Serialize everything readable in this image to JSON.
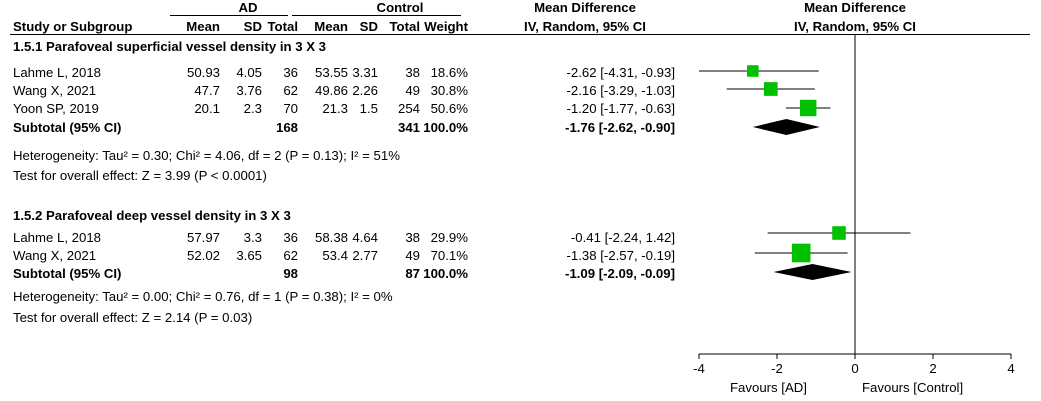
{
  "header": {
    "group1": "AD",
    "group2": "Control",
    "study_col": "Study or Subgroup",
    "mean1": "Mean",
    "sd1": "SD",
    "total1": "Total",
    "mean2": "Mean",
    "sd2": "SD",
    "total2": "Total",
    "weight": "Weight",
    "md_title": "Mean Difference",
    "md_method": "IV, Random, 95% CI",
    "plot_title": "Mean Difference",
    "plot_method": "IV, Random, 95% CI"
  },
  "subgroups": [
    {
      "title": "1.5.1 Parafoveal superficial vessel density in 3 X 3",
      "rows": [
        {
          "study": "Lahme L, 2018",
          "mean1": "50.93",
          "sd1": "4.05",
          "total1": "36",
          "mean2": "53.55",
          "sd2": "3.31",
          "total2": "38",
          "weight": "18.6%",
          "ci": "-2.62 [-4.31, -0.93]"
        },
        {
          "study": "Wang X, 2021",
          "mean1": "47.7",
          "sd1": "3.76",
          "total1": "62",
          "mean2": "49.86",
          "sd2": "2.26",
          "total2": "49",
          "weight": "30.8%",
          "ci": "-2.16 [-3.29, -1.03]"
        },
        {
          "study": "Yoon SP, 2019",
          "mean1": "20.1",
          "sd1": "2.3",
          "total1": "70",
          "mean2": "21.3",
          "sd2": "1.5",
          "total2": "254",
          "weight": "50.6%",
          "ci": "-1.20 [-1.77, -0.63]"
        }
      ],
      "subtotal": {
        "label": "Subtotal (95% CI)",
        "total1": "168",
        "total2": "341",
        "weight": "100.0%",
        "ci": "-1.76 [-2.62, -0.90]"
      },
      "heterogeneity": "Heterogeneity: Tau² = 0.30; Chi² = 4.06, df = 2 (P = 0.13); I² = 51%",
      "overall": "Test for overall effect: Z = 3.99 (P < 0.0001)"
    },
    {
      "title": "1.5.2 Parafoveal deep vessel density in 3 X 3",
      "rows": [
        {
          "study": "Lahme L, 2018",
          "mean1": "57.97",
          "sd1": "3.3",
          "total1": "36",
          "mean2": "58.38",
          "sd2": "4.64",
          "total2": "38",
          "weight": "29.9%",
          "ci": "-0.41 [-2.24, 1.42]"
        },
        {
          "study": "Wang X, 2021",
          "mean1": "52.02",
          "sd1": "3.65",
          "total1": "62",
          "mean2": "53.4",
          "sd2": "2.77",
          "total2": "49",
          "weight": "70.1%",
          "ci": "-1.38 [-2.57, -0.19]"
        }
      ],
      "subtotal": {
        "label": "Subtotal (95% CI)",
        "total1": "98",
        "total2": "87",
        "weight": "100.0%",
        "ci": "-1.09 [-2.09, -0.09]"
      },
      "heterogeneity": "Heterogeneity: Tau² = 0.00; Chi² = 0.76, df = 1 (P = 0.38); I² = 0%",
      "overall": "Test for overall effect: Z = 2.14 (P = 0.03)"
    }
  ],
  "chart_data": {
    "type": "forest",
    "xlim": [
      -4,
      4
    ],
    "ticks": [
      "-4",
      "-2",
      "0",
      "2",
      "4"
    ],
    "tick_values": [
      -4,
      -2,
      0,
      2,
      4
    ],
    "favours_left": "Favours [AD]",
    "favours_right": "Favours [Control]",
    "marker_color": "#00c000",
    "studies": [
      {
        "name": "Lahme L, 2018",
        "subgroup": "1.5.1",
        "md": -2.62,
        "lo": -4.31,
        "hi": -0.93,
        "weight": 18.6
      },
      {
        "name": "Wang X, 2021",
        "subgroup": "1.5.1",
        "md": -2.16,
        "lo": -3.29,
        "hi": -1.03,
        "weight": 30.8
      },
      {
        "name": "Yoon SP, 2019",
        "subgroup": "1.5.1",
        "md": -1.2,
        "lo": -1.77,
        "hi": -0.63,
        "weight": 50.6
      },
      {
        "name": "Lahme L, 2018",
        "subgroup": "1.5.2",
        "md": -0.41,
        "lo": -2.24,
        "hi": 1.42,
        "weight": 29.9
      },
      {
        "name": "Wang X, 2021",
        "subgroup": "1.5.2",
        "md": -1.38,
        "lo": -2.57,
        "hi": -0.19,
        "weight": 70.1
      }
    ],
    "subtotals": [
      {
        "subgroup": "1.5.1",
        "md": -1.76,
        "lo": -2.62,
        "hi": -0.9
      },
      {
        "subgroup": "1.5.2",
        "md": -1.09,
        "lo": -2.09,
        "hi": -0.09
      }
    ]
  }
}
